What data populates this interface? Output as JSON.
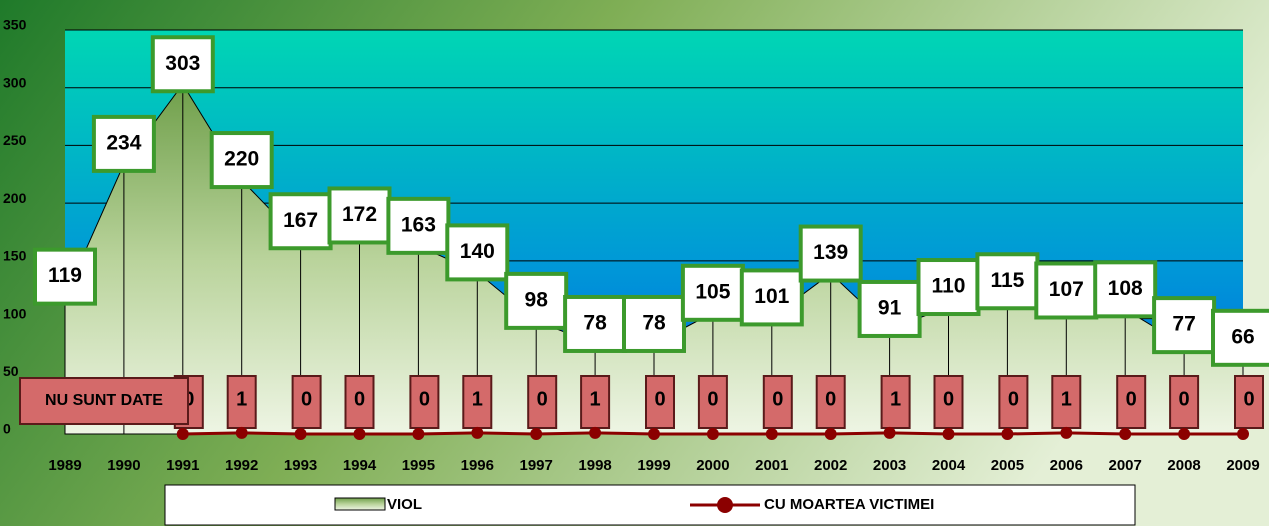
{
  "chart_data": {
    "type": "area-line",
    "categories": [
      "1989",
      "1990",
      "1991",
      "1992",
      "1993",
      "1994",
      "1995",
      "1996",
      "1997",
      "1998",
      "1999",
      "2000",
      "2001",
      "2002",
      "2003",
      "2004",
      "2005",
      "2006",
      "2007",
      "2008",
      "2009"
    ],
    "series": [
      {
        "name": "VIOL",
        "color": "#8fb86a",
        "values": [
          119,
          234,
          303,
          220,
          167,
          172,
          163,
          140,
          98,
          78,
          78,
          105,
          101,
          139,
          91,
          110,
          115,
          107,
          108,
          77,
          66
        ]
      },
      {
        "name": "CU MOARTEA VICTIMEI",
        "color": "#8b0000",
        "values": [
          null,
          null,
          0,
          1,
          0,
          0,
          0,
          1,
          0,
          1,
          0,
          0,
          0,
          0,
          1,
          0,
          0,
          1,
          0,
          0,
          0
        ]
      }
    ],
    "annotation": "NU SUNT DATE",
    "ylim": [
      0,
      350
    ],
    "yticks": [
      0,
      50,
      100,
      150,
      200,
      250,
      300,
      350
    ],
    "grid": true
  }
}
